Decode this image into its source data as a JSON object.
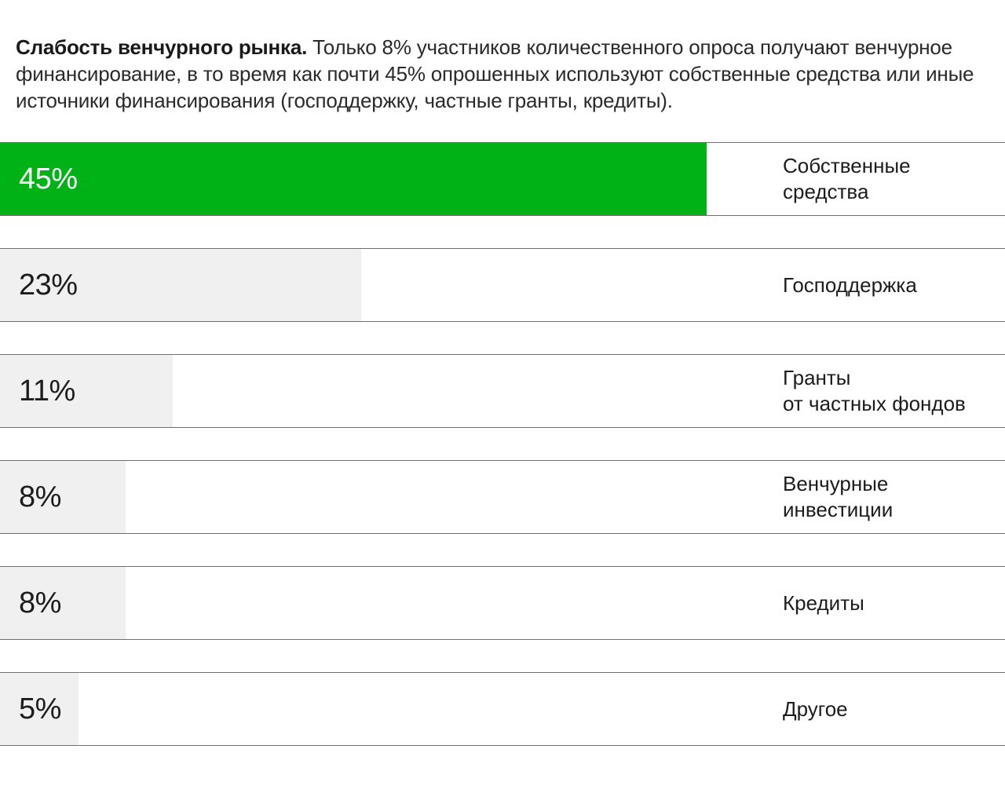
{
  "intro": {
    "lead": "Слабость венчурного рынка.",
    "text": " Только 8% участников количественного опроса  получают венчурное финансирование, в то время как почти 45% опрошенных используют собственные средства или иные источники финансирования (господдержку, частные гранты, кредиты)."
  },
  "colors": {
    "highlight_bar": "#00b215",
    "default_bar": "#f0f0f0",
    "row_border": "#6f6f6f"
  },
  "chart_data": {
    "type": "bar",
    "orientation": "horizontal",
    "categories": [
      "Собственные\nсредства",
      "Господдержка",
      "Гранты\nот частных фондов",
      "Венчурные\nинвестиции",
      "Кредиты",
      "Другое"
    ],
    "values": [
      45,
      23,
      11,
      8,
      8,
      5
    ],
    "value_labels": [
      "45%",
      "23%",
      "11%",
      "8%",
      "8%",
      "5%"
    ],
    "highlight_index": 0,
    "xlim": [
      0,
      64
    ]
  }
}
